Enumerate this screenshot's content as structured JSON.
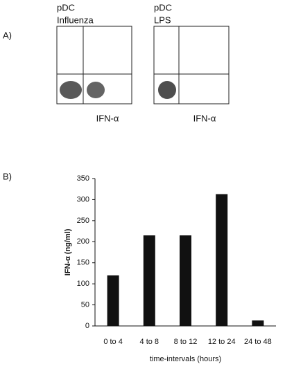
{
  "panel_a": {
    "label": "A)",
    "plots": [
      {
        "title_lines": [
          "pDC",
          "Influenza"
        ],
        "xlabel": "IFN-α"
      },
      {
        "title_lines": [
          "pDC",
          "LPS"
        ],
        "xlabel": "IFN-α"
      }
    ]
  },
  "panel_b_label": "B)",
  "chart_data": {
    "type": "bar",
    "categories": [
      "0 to 4",
      "4 to 8",
      "8 to 12",
      "12 to 24",
      "24 to 48"
    ],
    "values": [
      120,
      215,
      215,
      313,
      13
    ],
    "color": "#111111",
    "xlabel": "time-intervals (hours)",
    "ylabel": "IFN-α (ng/ml)",
    "ylim": [
      0,
      350
    ],
    "yticks": [
      0,
      50,
      100,
      150,
      200,
      250,
      300,
      350
    ],
    "grid": false
  }
}
